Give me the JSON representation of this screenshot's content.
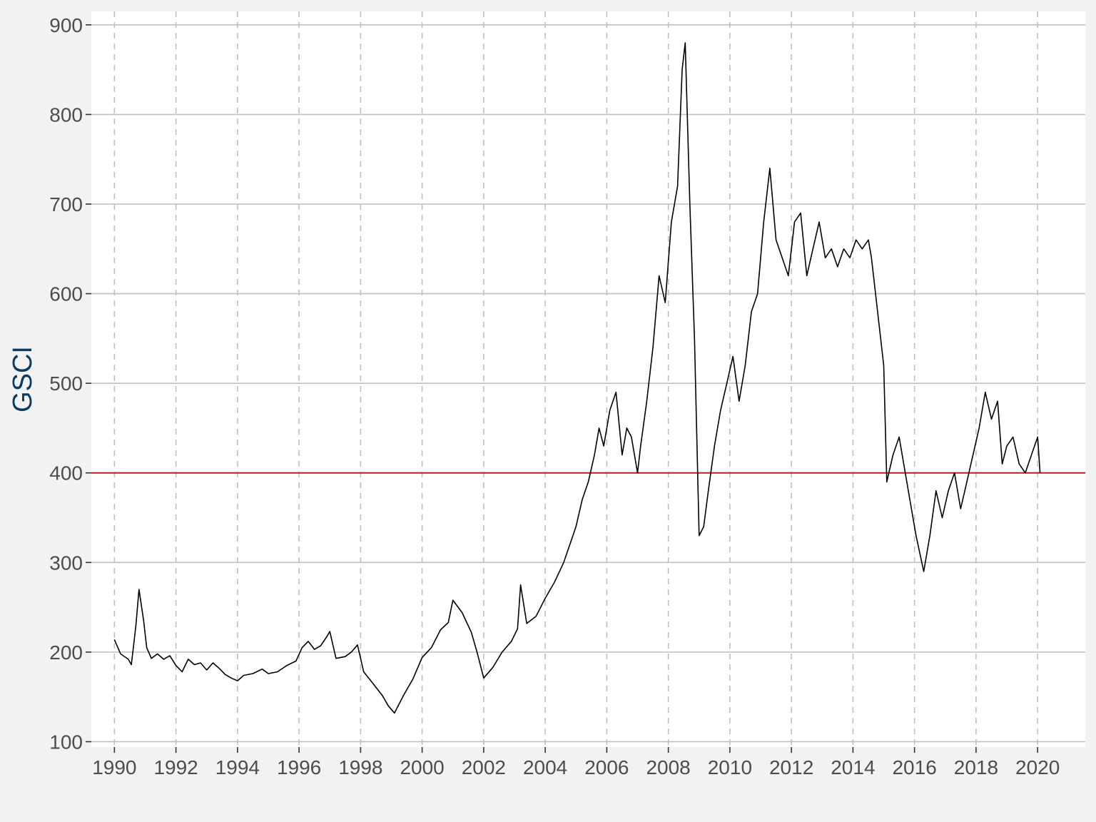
{
  "chart_data": {
    "type": "line",
    "title": "",
    "xlabel": "",
    "ylabel": "GSCI",
    "xlim": [
      1989.25,
      2021.55
    ],
    "ylim": [
      94,
      915
    ],
    "x_ticks": [
      1990,
      1992,
      1994,
      1996,
      1998,
      2000,
      2002,
      2004,
      2006,
      2008,
      2010,
      2012,
      2014,
      2016,
      2018,
      2020
    ],
    "x_tick_labels": [
      "1990",
      "1992",
      "1994",
      "1996",
      "1998",
      "2000",
      "2002",
      "2004",
      "2006",
      "2008",
      "2010",
      "2012",
      "2014",
      "2016",
      "2018",
      "2020"
    ],
    "y_ticks": [
      100,
      200,
      300,
      400,
      500,
      600,
      700,
      800,
      900
    ],
    "y_tick_labels": [
      "100",
      "200",
      "300",
      "400",
      "500",
      "600",
      "700",
      "800",
      "900"
    ],
    "grid": {
      "y": "solid",
      "x": "dashed"
    },
    "reference_line": {
      "y": 400,
      "color": "#b22222"
    },
    "colors": {
      "line": "#000000",
      "panel": "#ffffff",
      "background": "#f2f2f2",
      "ylabel": "#0b3c5d",
      "grid": "#bfbfbf"
    },
    "series": [
      {
        "x": [
          1990.0,
          1990.2,
          1990.45,
          1990.55,
          1990.7,
          1990.8,
          1990.95,
          1991.05,
          1991.2,
          1991.4,
          1991.6,
          1991.8,
          1992.0,
          1992.2,
          1992.4,
          1992.6,
          1992.8,
          1993.0,
          1993.2,
          1993.4,
          1993.6,
          1993.8,
          1994.0,
          1994.2,
          1994.5,
          1994.8,
          1995.0,
          1995.3,
          1995.6,
          1995.9,
          1996.1,
          1996.3,
          1996.5,
          1996.7,
          1996.9,
          1997.0,
          1997.2,
          1997.5,
          1997.7,
          1997.9,
          1998.1,
          1998.4,
          1998.7,
          1998.9,
          1999.1,
          1999.4,
          1999.7,
          2000.0,
          2000.3,
          2000.6,
          2000.85,
          2001.0,
          2001.3,
          2001.6,
          2001.8,
          2002.0,
          2002.3,
          2002.6,
          2002.9,
          2003.1,
          2003.2,
          2003.4,
          2003.7,
          2004.0,
          2004.3,
          2004.6,
          2004.8,
          2005.0,
          2005.2,
          2005.4,
          2005.6,
          2005.75,
          2005.9,
          2006.1,
          2006.3,
          2006.5,
          2006.65,
          2006.8,
          2007.0,
          2007.1,
          2007.3,
          2007.5,
          2007.7,
          2007.9,
          2008.1,
          2008.3,
          2008.45,
          2008.55,
          2008.7,
          2008.85,
          2009.0,
          2009.15,
          2009.3,
          2009.5,
          2009.7,
          2009.9,
          2010.1,
          2010.3,
          2010.5,
          2010.7,
          2010.9,
          2011.1,
          2011.3,
          2011.5,
          2011.7,
          2011.9,
          2012.1,
          2012.3,
          2012.5,
          2012.7,
          2012.9,
          2013.1,
          2013.3,
          2013.5,
          2013.7,
          2013.9,
          2014.1,
          2014.3,
          2014.5,
          2014.6,
          2014.8,
          2015.0,
          2015.1,
          2015.3,
          2015.5,
          2015.7,
          2015.9,
          2016.05,
          2016.3,
          2016.5,
          2016.7,
          2016.9,
          2017.1,
          2017.3,
          2017.5,
          2017.7,
          2017.9,
          2018.1,
          2018.3,
          2018.5,
          2018.7,
          2018.85,
          2019.0,
          2019.2,
          2019.4,
          2019.6,
          2019.8,
          2020.0,
          2020.08
        ],
        "y": [
          214,
          198,
          192,
          186,
          230,
          270,
          235,
          205,
          193,
          198,
          192,
          196,
          185,
          178,
          192,
          186,
          188,
          180,
          188,
          182,
          175,
          171,
          168,
          174,
          176,
          181,
          176,
          178,
          185,
          190,
          205,
          212,
          203,
          207,
          217,
          223,
          193,
          195,
          200,
          208,
          178,
          165,
          152,
          140,
          132,
          152,
          170,
          194,
          205,
          225,
          233,
          258,
          244,
          222,
          198,
          171,
          183,
          200,
          212,
          226,
          275,
          232,
          240,
          260,
          278,
          300,
          320,
          340,
          370,
          390,
          420,
          450,
          430,
          470,
          490,
          420,
          450,
          440,
          400,
          430,
          480,
          540,
          620,
          590,
          680,
          720,
          850,
          880,
          700,
          550,
          330,
          340,
          380,
          430,
          470,
          500,
          530,
          480,
          520,
          580,
          600,
          680,
          740,
          660,
          640,
          620,
          680,
          690,
          620,
          650,
          680,
          640,
          650,
          630,
          650,
          640,
          660,
          650,
          660,
          640,
          580,
          520,
          390,
          420,
          440,
          400,
          360,
          330,
          290,
          330,
          380,
          350,
          380,
          400,
          360,
          390,
          420,
          450,
          490,
          460,
          480,
          410,
          430,
          440,
          410,
          400,
          420,
          440,
          400
        ]
      }
    ]
  }
}
